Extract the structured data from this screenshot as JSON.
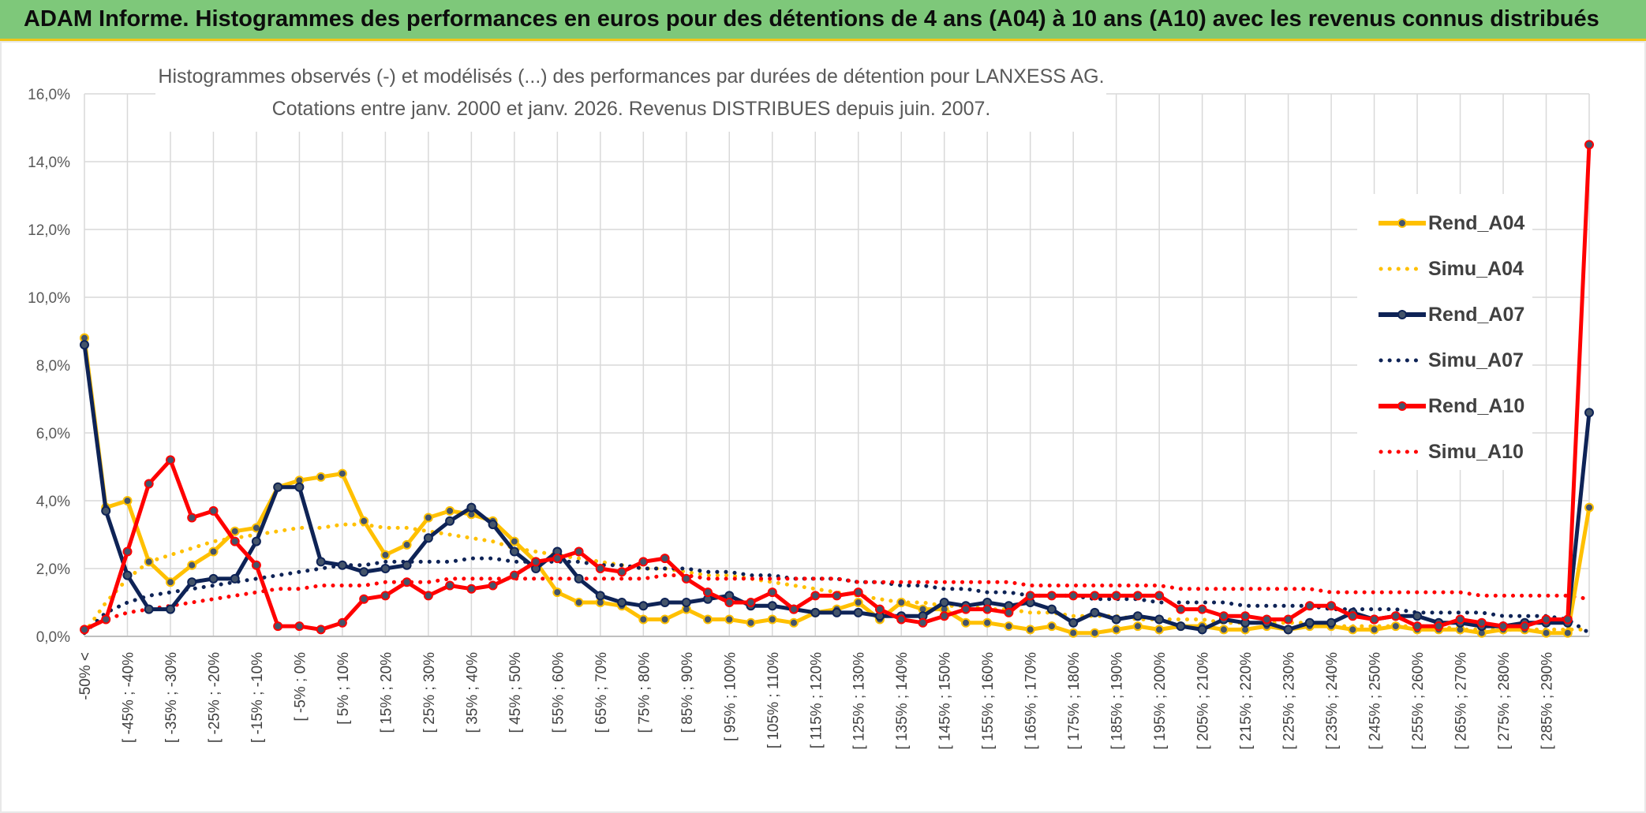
{
  "header": {
    "title": "ADAM Informe. Histogrammes des performances en euros pour des détentions de 4 ans (A04) à 10 ans (A10) avec les revenus connus distribués"
  },
  "chart_data": {
    "type": "line",
    "title": "Histogrammes observés (-) et modélisés (...) des performances par durées de détention pour LANXESS AG.",
    "subtitle": "Cotations entre janv. 2000 et janv. 2026. Revenus DISTRIBUES depuis juin. 2007.",
    "xlabel": "",
    "ylabel": "",
    "ylim": [
      0,
      16
    ],
    "y_ticks": [
      0,
      2,
      4,
      6,
      8,
      10,
      12,
      14,
      16
    ],
    "y_tick_labels": [
      "0,0%",
      "2,0%",
      "4,0%",
      "6,0%",
      "8,0%",
      "10,0%",
      "12,0%",
      "14,0%",
      "16,0%"
    ],
    "grid": true,
    "legend_position": "right",
    "x_tick_labels": [
      "-50% <",
      "[ -45% ; -40%",
      "[ -35% ; -30%",
      "[ -25% ; -20%",
      "[ -15% ; -10%",
      "[ -5% ; 0%",
      "[ 5% ; 10%",
      "[ 15% ; 20%",
      "[ 25% ; 30%",
      "[ 35% ; 40%",
      "[ 45% ; 50%",
      "[ 55% ; 60%",
      "[ 65% ; 70%",
      "[ 75% ; 80%",
      "[ 85% ; 90%",
      "[ 95% ; 100%",
      "[ 105% ; 110%",
      "[ 115% ; 120%",
      "[ 125% ; 130%",
      "[ 135% ; 140%",
      "[ 145% ; 150%",
      "[ 155% ; 160%",
      "[ 165% ; 170%",
      "[ 175% ; 180%",
      "[ 185% ; 190%",
      "[ 195% ; 200%",
      "[ 205% ; 210%",
      "[ 215% ; 220%",
      "[ 225% ; 230%",
      "[ 235% ; 240%",
      "[ 245% ; 250%",
      "[ 255% ; 260%",
      "[ 265% ; 270%",
      "[ 275% ; 280%",
      "[ 285% ; 290%"
    ],
    "series": [
      {
        "name": "Rend_A04",
        "style": "solid",
        "color": "#ffc000",
        "values": [
          8.8,
          3.8,
          4.0,
          2.2,
          1.6,
          2.1,
          2.5,
          3.1,
          3.2,
          4.4,
          4.6,
          4.7,
          4.8,
          3.4,
          2.4,
          2.7,
          3.5,
          3.7,
          3.6,
          3.4,
          2.8,
          2.2,
          1.3,
          1.0,
          1.0,
          0.9,
          0.5,
          0.5,
          0.8,
          0.5,
          0.5,
          0.4,
          0.5,
          0.4,
          0.7,
          0.8,
          1.0,
          0.5,
          1.0,
          0.8,
          0.8,
          0.4,
          0.4,
          0.3,
          0.2,
          0.3,
          0.1,
          0.1,
          0.2,
          0.3,
          0.2,
          0.3,
          0.3,
          0.2,
          0.2,
          0.3,
          0.2,
          0.3,
          0.3,
          0.2,
          0.2,
          0.3,
          0.2,
          0.2,
          0.2,
          0.1,
          0.2,
          0.2,
          0.1,
          0.1,
          3.8
        ]
      },
      {
        "name": "Simu_A04",
        "style": "dotted",
        "color": "#ffc000",
        "values": [
          0.1,
          1.0,
          1.7,
          2.2,
          2.4,
          2.6,
          2.8,
          2.9,
          3.0,
          3.1,
          3.2,
          3.2,
          3.3,
          3.3,
          3.2,
          3.2,
          3.1,
          3.0,
          2.9,
          2.8,
          2.6,
          2.5,
          2.4,
          2.3,
          2.2,
          2.1,
          2.0,
          2.0,
          1.9,
          1.8,
          1.8,
          1.7,
          1.6,
          1.5,
          1.4,
          1.3,
          1.2,
          1.1,
          1.0,
          1.0,
          0.9,
          0.9,
          0.8,
          0.8,
          0.7,
          0.7,
          0.6,
          0.6,
          0.6,
          0.5,
          0.5,
          0.5,
          0.5,
          0.4,
          0.4,
          0.4,
          0.4,
          0.4,
          0.3,
          0.3,
          0.3,
          0.3,
          0.3,
          0.3,
          0.2,
          0.2,
          0.2,
          0.2,
          0.2,
          0.2,
          0.2
        ]
      },
      {
        "name": "Rend_A07",
        "style": "solid",
        "color": "#0e2356",
        "values": [
          8.6,
          3.7,
          1.8,
          0.8,
          0.8,
          1.6,
          1.7,
          1.7,
          2.8,
          4.4,
          4.4,
          2.2,
          2.1,
          1.9,
          2.0,
          2.1,
          2.9,
          3.4,
          3.8,
          3.3,
          2.5,
          2.0,
          2.5,
          1.7,
          1.2,
          1.0,
          0.9,
          1.0,
          1.0,
          1.1,
          1.2,
          0.9,
          0.9,
          0.8,
          0.7,
          0.7,
          0.7,
          0.6,
          0.6,
          0.6,
          1.0,
          0.9,
          1.0,
          0.9,
          1.0,
          0.8,
          0.4,
          0.7,
          0.5,
          0.6,
          0.5,
          0.3,
          0.2,
          0.5,
          0.4,
          0.4,
          0.2,
          0.4,
          0.4,
          0.7,
          0.5,
          0.6,
          0.6,
          0.4,
          0.4,
          0.3,
          0.3,
          0.4,
          0.4,
          0.4,
          6.6
        ]
      },
      {
        "name": "Simu_A07",
        "style": "dotted",
        "color": "#0e2356",
        "values": [
          0.1,
          0.7,
          1.0,
          1.2,
          1.3,
          1.4,
          1.5,
          1.6,
          1.7,
          1.8,
          1.9,
          2.0,
          2.1,
          2.1,
          2.2,
          2.2,
          2.2,
          2.2,
          2.3,
          2.3,
          2.2,
          2.2,
          2.2,
          2.2,
          2.1,
          2.1,
          2.0,
          2.0,
          2.0,
          1.9,
          1.9,
          1.8,
          1.8,
          1.7,
          1.7,
          1.7,
          1.6,
          1.6,
          1.5,
          1.5,
          1.4,
          1.4,
          1.3,
          1.3,
          1.2,
          1.2,
          1.2,
          1.1,
          1.1,
          1.1,
          1.0,
          1.0,
          1.0,
          1.0,
          0.9,
          0.9,
          0.9,
          0.9,
          0.8,
          0.8,
          0.8,
          0.8,
          0.7,
          0.7,
          0.7,
          0.7,
          0.6,
          0.6,
          0.6,
          0.5,
          0.1
        ]
      },
      {
        "name": "Rend_A10",
        "style": "solid",
        "color": "#ff0000",
        "values": [
          0.2,
          0.5,
          2.5,
          4.5,
          5.2,
          3.5,
          3.7,
          2.8,
          2.1,
          0.3,
          0.3,
          0.2,
          0.4,
          1.1,
          1.2,
          1.6,
          1.2,
          1.5,
          1.4,
          1.5,
          1.8,
          2.2,
          2.3,
          2.5,
          2.0,
          1.9,
          2.2,
          2.3,
          1.7,
          1.3,
          1.0,
          1.0,
          1.3,
          0.8,
          1.2,
          1.2,
          1.3,
          0.8,
          0.5,
          0.4,
          0.6,
          0.8,
          0.8,
          0.7,
          1.2,
          1.2,
          1.2,
          1.2,
          1.2,
          1.2,
          1.2,
          0.8,
          0.8,
          0.6,
          0.6,
          0.5,
          0.5,
          0.9,
          0.9,
          0.6,
          0.5,
          0.6,
          0.3,
          0.3,
          0.5,
          0.4,
          0.3,
          0.3,
          0.5,
          0.5,
          14.5
        ]
      },
      {
        "name": "Simu_A10",
        "style": "dotted",
        "color": "#ff0000",
        "values": [
          0.2,
          0.5,
          0.7,
          0.8,
          0.9,
          1.0,
          1.1,
          1.2,
          1.3,
          1.4,
          1.4,
          1.5,
          1.5,
          1.5,
          1.6,
          1.6,
          1.6,
          1.7,
          1.7,
          1.7,
          1.7,
          1.7,
          1.7,
          1.7,
          1.7,
          1.7,
          1.7,
          1.8,
          1.8,
          1.7,
          1.7,
          1.7,
          1.7,
          1.7,
          1.7,
          1.7,
          1.6,
          1.6,
          1.6,
          1.6,
          1.6,
          1.6,
          1.6,
          1.6,
          1.5,
          1.5,
          1.5,
          1.5,
          1.5,
          1.5,
          1.5,
          1.4,
          1.4,
          1.4,
          1.4,
          1.4,
          1.4,
          1.4,
          1.3,
          1.3,
          1.3,
          1.3,
          1.3,
          1.3,
          1.3,
          1.2,
          1.2,
          1.2,
          1.2,
          1.2,
          1.1
        ]
      }
    ]
  }
}
